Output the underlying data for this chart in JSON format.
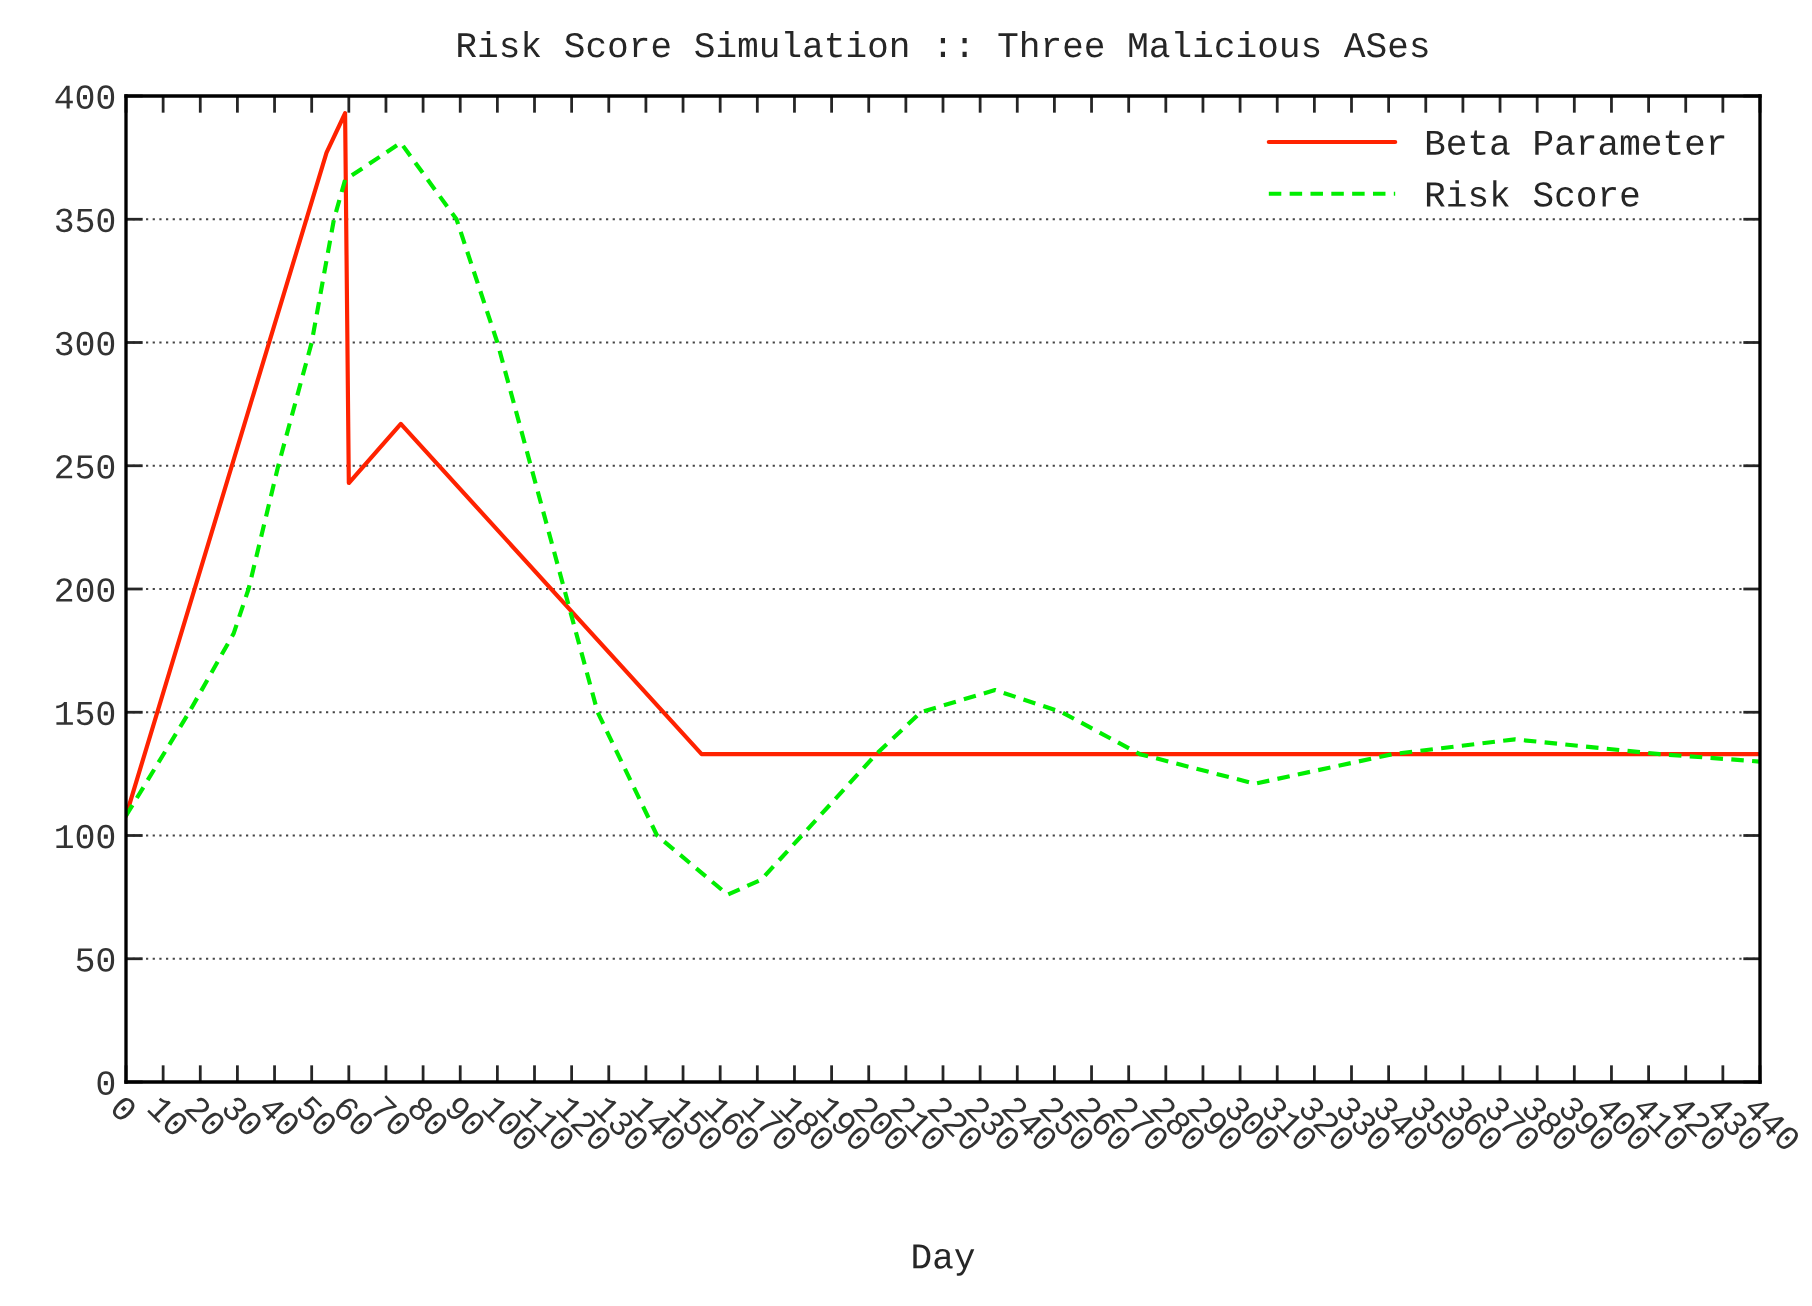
{
  "chart_data": {
    "type": "line",
    "title": "Risk Score Simulation :: Three Malicious ASes",
    "xlabel": "Day",
    "xlim": [
      0,
      440
    ],
    "xticks": [
      0,
      10,
      20,
      30,
      40,
      50,
      60,
      70,
      80,
      90,
      100,
      110,
      120,
      130,
      140,
      150,
      160,
      170,
      180,
      190,
      200,
      210,
      220,
      230,
      240,
      250,
      260,
      270,
      280,
      290,
      300,
      310,
      320,
      330,
      340,
      350,
      360,
      370,
      380,
      390,
      400,
      410,
      420,
      430,
      440
    ],
    "ylim": [
      0,
      400
    ],
    "yticks": [
      0,
      50,
      100,
      150,
      200,
      250,
      300,
      350,
      400
    ],
    "grid": "y",
    "legend": "top right",
    "series": [
      {
        "name": "Beta Parameter",
        "color": "#ff2200",
        "line_style": "solid",
        "x": [
          0,
          54,
          59,
          60,
          74,
          155,
          440
        ],
        "values": [
          108,
          377,
          393,
          243,
          267,
          133,
          133
        ]
      },
      {
        "name": "Risk Score",
        "color": "#00ee00",
        "line_style": "dashed",
        "x": [
          0,
          17,
          29,
          33,
          41,
          50,
          56,
          59,
          74,
          89,
          100,
          109,
          118,
          127,
          143,
          162,
          171,
          182,
          202,
          214,
          234,
          252,
          273,
          304,
          341,
          374,
          413,
          440
        ],
        "values": [
          108,
          150,
          182,
          200,
          250,
          300,
          350,
          366,
          381,
          350,
          300,
          250,
          200,
          150,
          100,
          76,
          82,
          100,
          133,
          150,
          159,
          150,
          133,
          121,
          133,
          139,
          133,
          130
        ]
      }
    ]
  }
}
